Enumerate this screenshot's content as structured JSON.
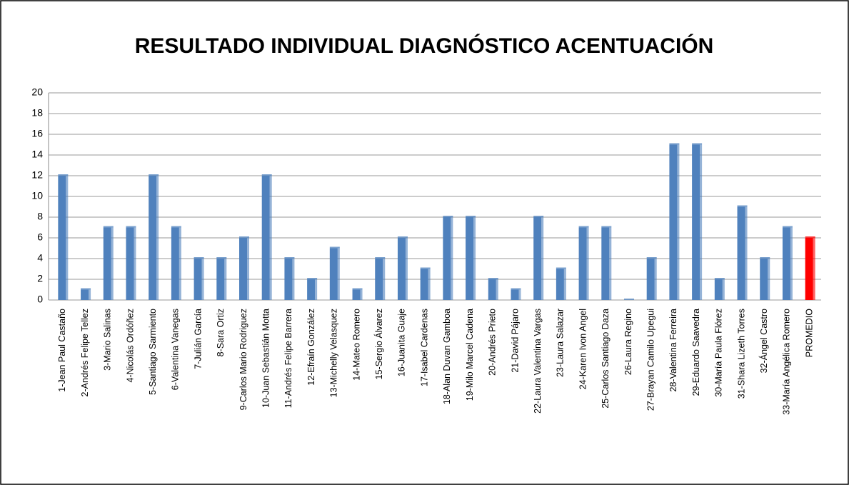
{
  "chart_data": {
    "type": "bar",
    "title": "RESULTADO INDIVIDUAL DIAGNÓSTICO ACENTUACIÓN",
    "categories": [
      "1-Jean Paul Castaño",
      "2-Andrés Felipe Tellez",
      "3-Mario Salinas",
      "4-Nicolás Ordóñez",
      "5-Santiago Sarmiento",
      "6-Valentina Vanegas",
      "7-Julián García",
      "8-Sara Ortiz",
      "9-Carlos Mario Rodriguez",
      "10-Juan Sebastián Motta",
      "11-Andrés Felipe Barrera",
      "12-Efraín González",
      "13-Michelly Velasquez",
      "14-Mateo Romero",
      "15-Sergio Álvarez",
      "16-Juanita Guaje",
      "17-Isabel Cardenas",
      "18-Alan Duvan Gamboa",
      "19-Milo Marcel Cadena",
      "20-Andrés Prieto",
      "21-David Pájaro",
      "22-Laura Valentina Vargas",
      "23-Laura Salazar",
      "24-Karen Ivon Angel",
      "25-Carlos Santiago Daza",
      "26-Laura Regino",
      "27-Brayan Camilo Upegui",
      "28-Valentina Ferreira",
      "29-Eduardo Saavedra",
      "30-María Paula Flórez",
      "31-Shara Lizeth Torres",
      "32-Ángel Castro",
      "33-María Angélica Romero",
      "PROMEDIO"
    ],
    "values": [
      12,
      1,
      7,
      7,
      12,
      7,
      4,
      4,
      6,
      12,
      4,
      2,
      5,
      1,
      4,
      6,
      3,
      8,
      8,
      2,
      1,
      8,
      3,
      7,
      7,
      0,
      4,
      15,
      15,
      2,
      9,
      4,
      7,
      6
    ],
    "colors": [
      "#4f81bd",
      "#4f81bd",
      "#4f81bd",
      "#4f81bd",
      "#4f81bd",
      "#4f81bd",
      "#4f81bd",
      "#4f81bd",
      "#4f81bd",
      "#4f81bd",
      "#4f81bd",
      "#4f81bd",
      "#4f81bd",
      "#4f81bd",
      "#4f81bd",
      "#4f81bd",
      "#4f81bd",
      "#4f81bd",
      "#4f81bd",
      "#4f81bd",
      "#4f81bd",
      "#4f81bd",
      "#4f81bd",
      "#4f81bd",
      "#4f81bd",
      "#4f81bd",
      "#4f81bd",
      "#4f81bd",
      "#4f81bd",
      "#4f81bd",
      "#4f81bd",
      "#4f81bd",
      "#4f81bd",
      "#ff0000"
    ],
    "ylim": [
      0,
      20
    ],
    "yticks": [
      0,
      2,
      4,
      6,
      8,
      10,
      12,
      14,
      16,
      18,
      20
    ],
    "grid": true
  }
}
